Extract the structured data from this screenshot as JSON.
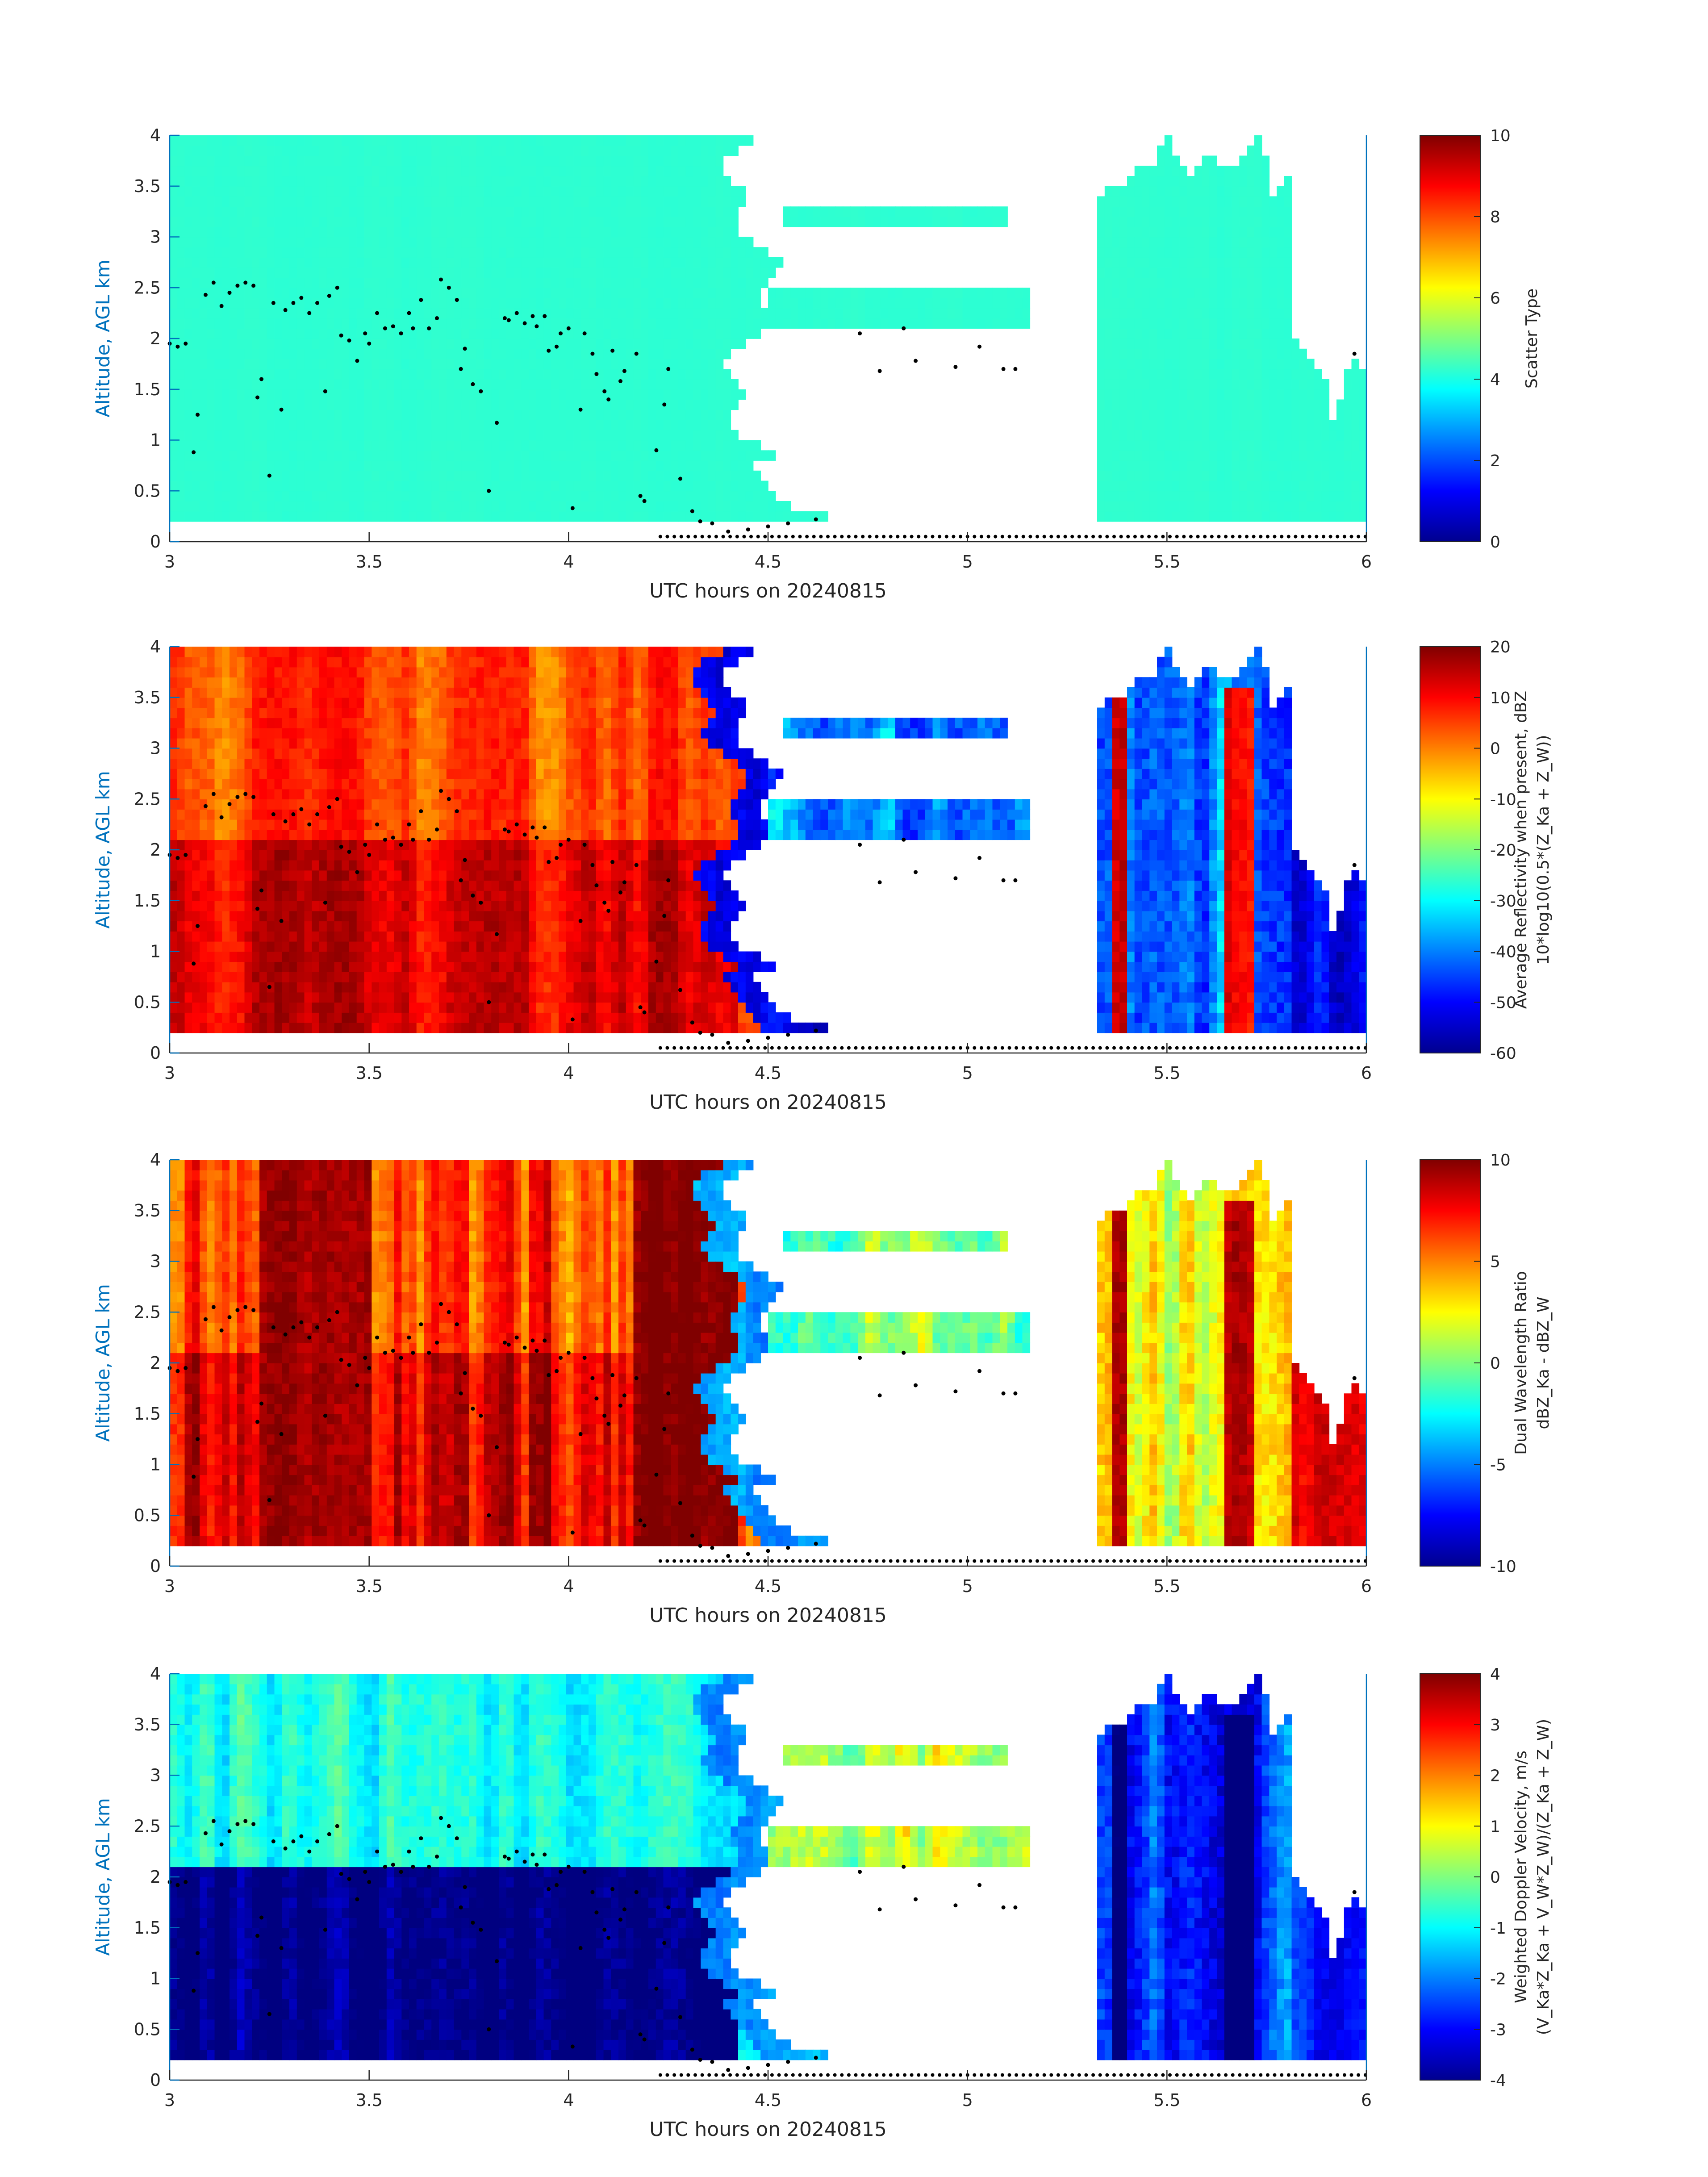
{
  "figure": {
    "xlabel": "UTC hours on 20240815",
    "ylabel": "Altitude, AGL km",
    "xticks": [
      "3",
      "3.5",
      "4",
      "4.5",
      "5",
      "5.5",
      "6"
    ],
    "yticks": [
      "0",
      "0.5",
      "1",
      "1.5",
      "2",
      "2.5",
      "3",
      "3.5",
      "4"
    ]
  },
  "chart_data": [
    {
      "type": "heatmap",
      "xlabel": "UTC hours on 20240815",
      "ylabel": "Altitude, AGL km",
      "xlim": [
        3,
        6
      ],
      "ylim": [
        0,
        4
      ],
      "colormap": "jet",
      "colorbar": {
        "label_lines": [
          "Scatter Type"
        ],
        "clim": [
          0,
          10
        ],
        "ticks": [
          "0",
          "2",
          "4",
          "6",
          "8",
          "10"
        ]
      },
      "fields": {
        "upper_cloud": 4.2,
        "thin_layers": 4.2,
        "lower_cloud": 4.2,
        "right_cells": 4.2,
        "far_right": 4.2
      }
    },
    {
      "type": "heatmap",
      "xlabel": "UTC hours on 20240815",
      "ylabel": "Altitude, AGL km",
      "xlim": [
        3,
        6
      ],
      "ylim": [
        0,
        4
      ],
      "colormap": "jet",
      "colorbar": {
        "label_lines": [
          "Average Reflectivity when present, dBZ",
          "10*log10(0.5*(Z_Ka + Z_W))"
        ],
        "clim": [
          -60,
          20
        ],
        "ticks": [
          "-60",
          "-50",
          "-40",
          "-30",
          "-20",
          "-10",
          "0",
          "10",
          "20"
        ]
      },
      "fields": {
        "upper_cloud": 4,
        "lower_cloud": 12,
        "thin_layers": -38,
        "edge_fringe": -52,
        "right_cells": -40,
        "right_cores": 10,
        "far_right": -50
      }
    },
    {
      "type": "heatmap",
      "xlabel": "UTC hours on 20240815",
      "ylabel": "Altitude, AGL km",
      "xlim": [
        3,
        6
      ],
      "ylim": [
        0,
        4
      ],
      "colormap": "jet",
      "colorbar": {
        "label_lines": [
          "Dual Wavelength Ratio",
          "dBZ_Ka - dBZ_W"
        ],
        "clim": [
          -10,
          10
        ],
        "ticks": [
          "-10",
          "-5",
          "0",
          "5",
          "10"
        ]
      },
      "fields": {
        "upper_cloud": 8,
        "lower_cloud": 10,
        "thin_layers": 0,
        "right_cells": 2,
        "right_cores": 8,
        "edge_fringe": -4
      }
    },
    {
      "type": "heatmap",
      "xlabel": "UTC hours on 20240815",
      "ylabel": "Altitude, AGL km",
      "xlim": [
        3,
        6
      ],
      "ylim": [
        0,
        4
      ],
      "colormap": "jet",
      "colorbar": {
        "label_lines": [
          "Weighted Doppler Velocity, m/s",
          "(V_Ka*Z_Ka + V_W*Z_W)/(Z_Ka + Z_W)"
        ],
        "clim": [
          -4,
          4
        ],
        "ticks": [
          "-4",
          "-3",
          "-2",
          "-1",
          "0",
          "1",
          "2",
          "3",
          "4"
        ]
      },
      "fields": {
        "upper_cloud": -0.8,
        "lower_cloud": -4,
        "thin_layers": 0.4,
        "edge_fringe": -1.6,
        "right_cells": -2.6,
        "right_cores": -3.8,
        "far_right": -3
      }
    }
  ],
  "dots": {
    "color": "#000000",
    "points": [
      [
        3.0,
        1.95
      ],
      [
        3.02,
        1.92
      ],
      [
        3.04,
        1.95
      ],
      [
        3.06,
        0.88
      ],
      [
        3.07,
        1.25
      ],
      [
        3.09,
        2.43
      ],
      [
        3.11,
        2.55
      ],
      [
        3.13,
        2.32
      ],
      [
        3.15,
        2.45
      ],
      [
        3.17,
        2.52
      ],
      [
        3.19,
        2.55
      ],
      [
        3.21,
        2.52
      ],
      [
        3.22,
        1.42
      ],
      [
        3.23,
        1.6
      ],
      [
        3.25,
        0.65
      ],
      [
        3.26,
        2.35
      ],
      [
        3.28,
        1.3
      ],
      [
        3.29,
        2.28
      ],
      [
        3.31,
        2.35
      ],
      [
        3.33,
        2.4
      ],
      [
        3.35,
        2.25
      ],
      [
        3.37,
        2.35
      ],
      [
        3.39,
        1.48
      ],
      [
        3.4,
        2.42
      ],
      [
        3.42,
        2.5
      ],
      [
        3.43,
        2.03
      ],
      [
        3.45,
        1.98
      ],
      [
        3.47,
        1.78
      ],
      [
        3.49,
        2.05
      ],
      [
        3.5,
        1.95
      ],
      [
        3.52,
        2.25
      ],
      [
        3.54,
        2.1
      ],
      [
        3.56,
        2.12
      ],
      [
        3.58,
        2.05
      ],
      [
        3.6,
        2.25
      ],
      [
        3.61,
        2.1
      ],
      [
        3.63,
        2.38
      ],
      [
        3.65,
        2.1
      ],
      [
        3.67,
        2.2
      ],
      [
        3.68,
        2.58
      ],
      [
        3.7,
        2.5
      ],
      [
        3.72,
        2.38
      ],
      [
        3.73,
        1.7
      ],
      [
        3.74,
        1.9
      ],
      [
        3.76,
        1.55
      ],
      [
        3.78,
        1.48
      ],
      [
        3.8,
        0.5
      ],
      [
        3.82,
        1.17
      ],
      [
        3.84,
        2.2
      ],
      [
        3.85,
        2.18
      ],
      [
        3.87,
        2.25
      ],
      [
        3.89,
        2.15
      ],
      [
        3.91,
        2.22
      ],
      [
        3.92,
        2.12
      ],
      [
        3.94,
        2.22
      ],
      [
        3.95,
        1.88
      ],
      [
        3.97,
        1.92
      ],
      [
        3.98,
        2.05
      ],
      [
        4.0,
        2.1
      ],
      [
        4.01,
        0.33
      ],
      [
        4.03,
        1.3
      ],
      [
        4.04,
        2.05
      ],
      [
        4.06,
        1.85
      ],
      [
        4.07,
        1.65
      ],
      [
        4.09,
        1.48
      ],
      [
        4.1,
        1.4
      ],
      [
        4.11,
        1.88
      ],
      [
        4.13,
        1.58
      ],
      [
        4.14,
        1.68
      ],
      [
        4.17,
        1.85
      ],
      [
        4.18,
        0.45
      ],
      [
        4.19,
        0.4
      ],
      [
        4.22,
        0.9
      ],
      [
        4.24,
        1.35
      ],
      [
        4.25,
        1.7
      ],
      [
        4.28,
        0.62
      ],
      [
        4.31,
        0.3
      ],
      [
        4.33,
        0.2
      ],
      [
        4.36,
        0.18
      ],
      [
        4.4,
        0.1
      ],
      [
        4.45,
        0.12
      ],
      [
        4.5,
        0.15
      ],
      [
        4.55,
        0.18
      ],
      [
        4.62,
        0.22
      ],
      [
        4.73,
        2.05
      ],
      [
        4.78,
        1.68
      ],
      [
        4.84,
        2.1
      ],
      [
        4.87,
        1.78
      ],
      [
        4.97,
        1.72
      ],
      [
        5.03,
        1.92
      ],
      [
        5.09,
        1.7
      ],
      [
        5.12,
        1.7
      ],
      [
        5.97,
        1.85
      ]
    ],
    "surface_dots": {
      "x_start": 4.23,
      "x_end": 6.0,
      "altitude": 0.05
    }
  }
}
